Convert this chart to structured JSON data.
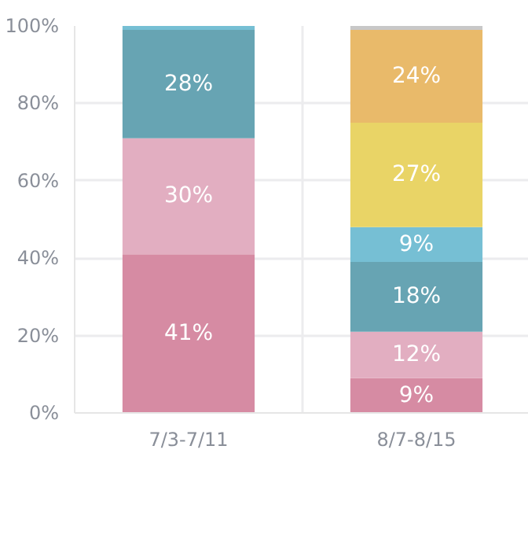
{
  "chart_data": {
    "type": "bar",
    "stacked": true,
    "categories": [
      "7/3-7/11",
      "8/7-8/15"
    ],
    "series": [
      {
        "color": "#d68ba3",
        "values": [
          41,
          9
        ],
        "value_labels": [
          "41%",
          "9%"
        ]
      },
      {
        "color": "#e2aec1",
        "values": [
          30,
          12
        ],
        "value_labels": [
          "30%",
          "12%"
        ]
      },
      {
        "color": "#67a4b3",
        "values": [
          28,
          18
        ],
        "value_labels": [
          "28%",
          "18%"
        ]
      },
      {
        "color": "#76bfd4",
        "values": [
          1,
          9
        ],
        "value_labels": [
          null,
          "9%"
        ]
      },
      {
        "color": "#e9d466",
        "values": [
          0,
          27
        ],
        "value_labels": [
          null,
          "27%"
        ]
      },
      {
        "color": "#e9ba6a",
        "values": [
          0,
          24
        ],
        "value_labels": [
          null,
          "24%"
        ]
      },
      {
        "color": "#c8c8c8",
        "values": [
          0,
          1
        ],
        "value_labels": [
          null,
          null
        ]
      }
    ],
    "ylim": [
      0,
      100
    ],
    "yticks": [
      {
        "value": 0,
        "label": "0%"
      },
      {
        "value": 20,
        "label": "20%"
      },
      {
        "value": 40,
        "label": "40%"
      },
      {
        "value": 60,
        "label": "60%"
      },
      {
        "value": 80,
        "label": "80%"
      },
      {
        "value": 100,
        "label": "100%"
      }
    ],
    "grid": true
  }
}
